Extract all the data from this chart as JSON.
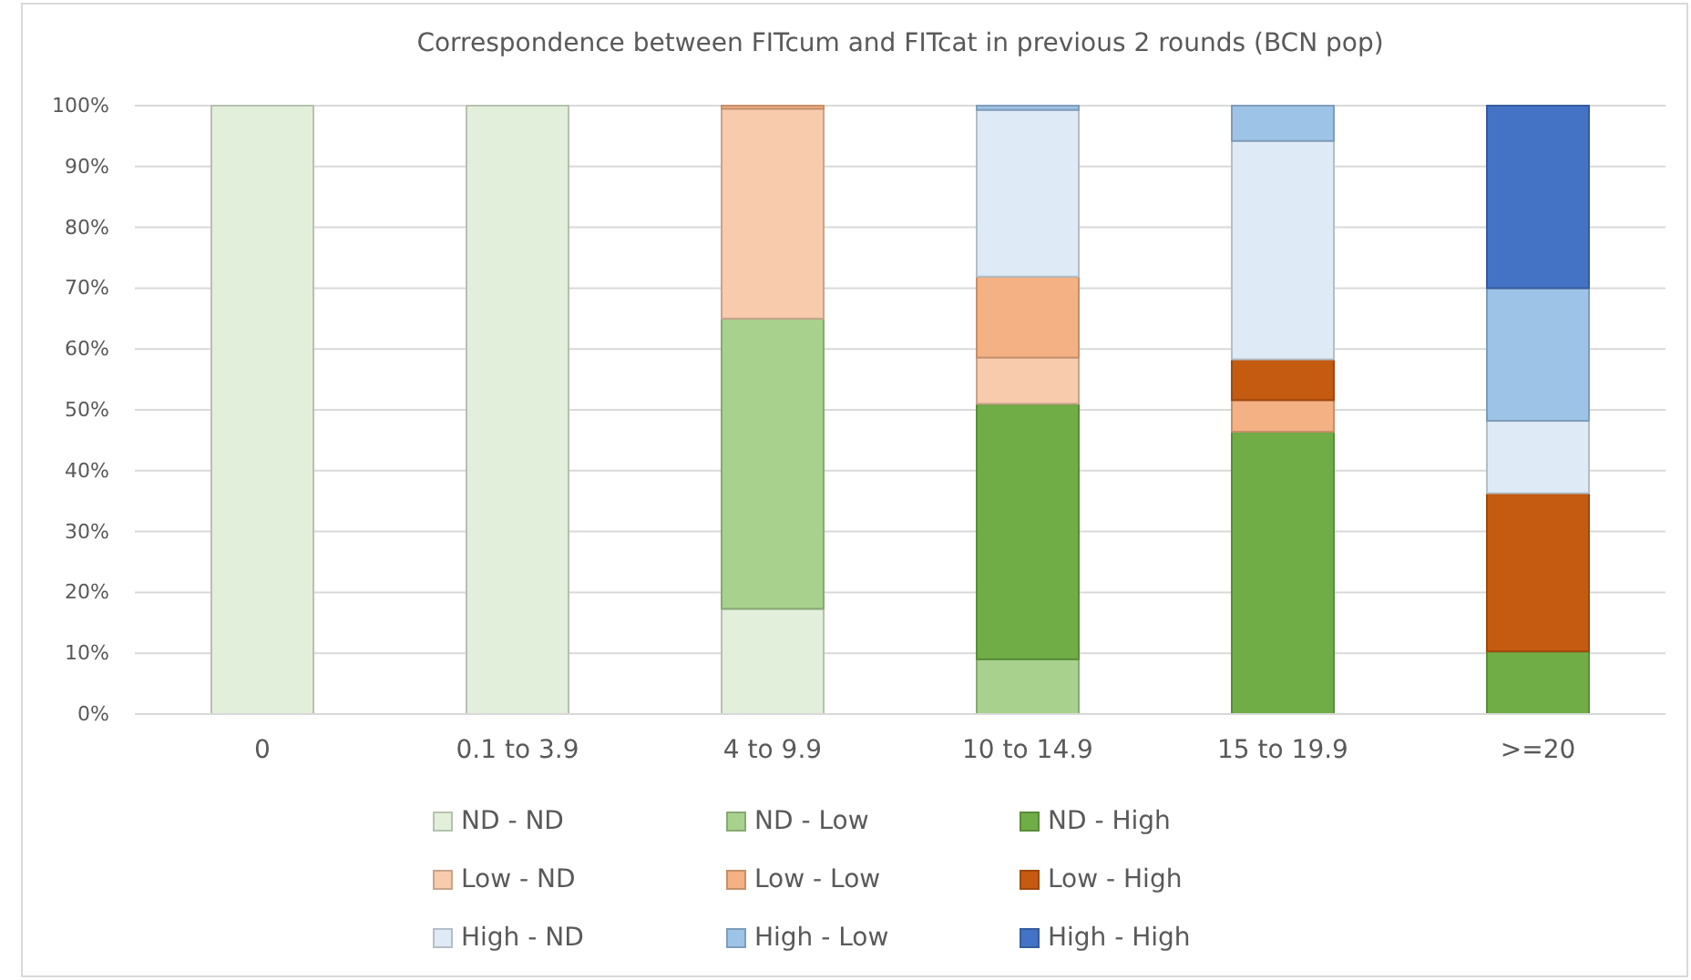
{
  "chart_data": {
    "type": "bar",
    "stacked": true,
    "title": "Correspondence between FITcum and FITcat in previous 2 rounds (BCN pop)",
    "categories": [
      "0",
      "0.1 to 3.9",
      "4 to 9.9",
      "10 to 14.9",
      "15 to 19.9",
      ">=20"
    ],
    "series": [
      {
        "name": "ND - ND",
        "color": "#e2efda",
        "values": [
          100,
          100,
          17.3,
          0,
          0,
          0
        ]
      },
      {
        "name": "ND - Low",
        "color": "#a9d18e",
        "values": [
          0,
          0,
          47.7,
          9,
          0,
          0
        ]
      },
      {
        "name": "ND - High",
        "color": "#70ad47",
        "values": [
          0,
          0,
          0,
          42,
          46.4,
          10.3
        ]
      },
      {
        "name": "Low - ND",
        "color": "#f8cbad",
        "values": [
          0,
          0,
          34.5,
          7.6,
          0,
          0
        ]
      },
      {
        "name": "Low - Low",
        "color": "#f4b183",
        "values": [
          0,
          0,
          0.5,
          13.3,
          5.2,
          0
        ]
      },
      {
        "name": "Low - High",
        "color": "#c55a11",
        "values": [
          0,
          0,
          0,
          0,
          6.7,
          26
        ]
      },
      {
        "name": "High - ND",
        "color": "#deebf7",
        "values": [
          0,
          0,
          0,
          27.4,
          35.9,
          11.9
        ]
      },
      {
        "name": "High - Low",
        "color": "#9dc3e6",
        "values": [
          0,
          0,
          0,
          0.7,
          5.8,
          21.8
        ]
      },
      {
        "name": "High - High",
        "color": "#4472c4",
        "values": [
          0,
          0,
          0,
          0,
          0,
          30
        ]
      }
    ],
    "ylim": [
      0,
      100
    ],
    "yticks": [
      {
        "value": 0,
        "label": "0%"
      },
      {
        "value": 10,
        "label": "10%"
      },
      {
        "value": 20,
        "label": "20%"
      },
      {
        "value": 30,
        "label": "30%"
      },
      {
        "value": 40,
        "label": "40%"
      },
      {
        "value": 50,
        "label": "50%"
      },
      {
        "value": 60,
        "label": "60%"
      },
      {
        "value": 70,
        "label": "70%"
      },
      {
        "value": 80,
        "label": "80%"
      },
      {
        "value": 90,
        "label": "90%"
      },
      {
        "value": 100,
        "label": "100%"
      }
    ],
    "grid": "y",
    "legend": "bottom"
  }
}
